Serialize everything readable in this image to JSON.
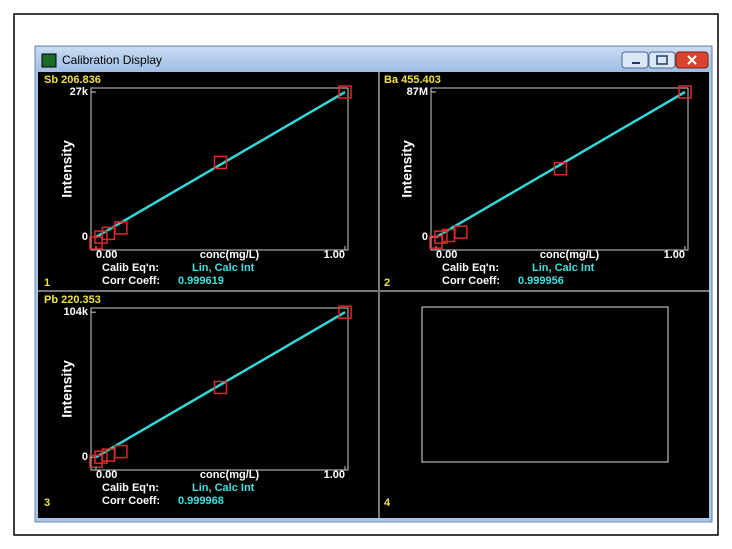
{
  "window_title": "Calibration Display",
  "chart_data": [
    {
      "type": "scatter",
      "panel": "1",
      "title": "Sb 206.836",
      "ylabel": "Intensity",
      "xlabel": "conc(mg/L)",
      "xlim": [
        -0.02,
        1.012
      ],
      "xticks": [
        {
          "value": 0,
          "label": "0.00"
        },
        {
          "value": 1,
          "label": "1.00"
        }
      ],
      "ylim": [
        -2400,
        27750
      ],
      "yticks": [
        0,
        {
          "value": 27000,
          "label": "27k"
        }
      ],
      "points": {
        "color": "#e02828",
        "x": [
          0,
          0.02,
          0.05,
          0.1,
          0.5,
          1.0
        ],
        "values": [
          -1100,
          0,
          700,
          1700,
          13900,
          27000
        ]
      },
      "fit_line": {
        "color": "#30d8d8",
        "x": [
          0,
          1.0
        ],
        "values": [
          0,
          27000
        ]
      },
      "calib_label": "Calib Eq'n:",
      "calib_value": "Lin, Calc Int",
      "corr_label": "Corr Coeff:",
      "corr_value": "0.999619"
    },
    {
      "type": "scatter",
      "panel": "2",
      "title": "Ba 455.403",
      "ylabel": "Intensity",
      "xlabel": "conc(mg/L)",
      "xlim": [
        -0.02,
        1.012
      ],
      "xticks": [
        {
          "value": 0,
          "label": "0.00"
        },
        {
          "value": 1,
          "label": "1.00"
        }
      ],
      "ylim": [
        -7700000,
        89400000
      ],
      "yticks": [
        0,
        {
          "value": 87000000,
          "label": "87M"
        }
      ],
      "points": {
        "color": "#e02828",
        "x": [
          0,
          0.02,
          0.05,
          0.1,
          0.5,
          1.0
        ],
        "values": [
          -3000000,
          0,
          1000000,
          3000000,
          41000000,
          87000000
        ]
      },
      "fit_line": {
        "color": "#30d8d8",
        "x": [
          0,
          1.0
        ],
        "values": [
          0,
          87000000
        ]
      },
      "calib_label": "Calib Eq'n:",
      "calib_value": "Lin, Calc Int",
      "corr_label": "Corr Coeff:",
      "corr_value": "0.999956"
    },
    {
      "type": "scatter",
      "panel": "3",
      "title": "Pb 220.353",
      "ylabel": "Intensity",
      "xlabel": "conc(mg/L)",
      "xlim": [
        -0.02,
        1.012
      ],
      "xticks": [
        {
          "value": 0,
          "label": "0.00"
        },
        {
          "value": 1,
          "label": "1.00"
        }
      ],
      "ylim": [
        -9200,
        107000
      ],
      "yticks": [
        0,
        {
          "value": 104000,
          "label": "104k"
        }
      ],
      "points": {
        "color": "#e02828",
        "x": [
          0,
          0.02,
          0.05,
          0.1,
          0.5,
          1.0
        ],
        "values": [
          -3000,
          0,
          1500,
          4000,
          50000,
          104000
        ]
      },
      "fit_line": {
        "color": "#30d8d8",
        "x": [
          0,
          1.0
        ],
        "values": [
          0,
          104000
        ]
      },
      "calib_label": "Calib Eq'n:",
      "calib_value": "Lin, Calc Int",
      "corr_label": "Corr Coeff:",
      "corr_value": "0.999968"
    }
  ],
  "empty_panel": {
    "panel": "4"
  }
}
